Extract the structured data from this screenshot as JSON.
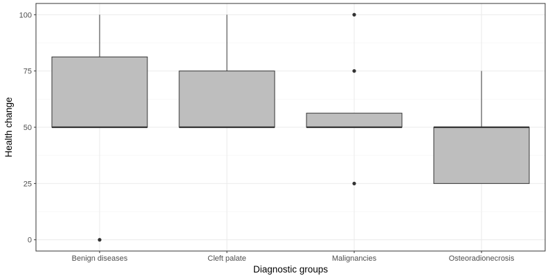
{
  "chart_data": {
    "type": "boxplot",
    "title": "",
    "xlabel": "Diagnostic groups",
    "ylabel": "Health change",
    "ylim": [
      -5,
      105
    ],
    "yticks": [
      0,
      25,
      50,
      75,
      100
    ],
    "grid": true,
    "categories": [
      "Benign diseases",
      "Cleft palate",
      "Malignancies",
      "Osteoradionecrosis"
    ],
    "boxes": [
      {
        "category": "Benign diseases",
        "whisker_low": 50,
        "q1": 50,
        "median": 50,
        "q3": 81.25,
        "whisker_high": 100,
        "outliers": [
          0
        ]
      },
      {
        "category": "Cleft palate",
        "whisker_low": 50,
        "q1": 50,
        "median": 50,
        "q3": 75,
        "whisker_high": 100,
        "outliers": []
      },
      {
        "category": "Malignancies",
        "whisker_low": 50,
        "q1": 50,
        "median": 50,
        "q3": 56.25,
        "whisker_high": 56.25,
        "outliers": [
          100,
          75,
          25
        ]
      },
      {
        "category": "Osteoradionecrosis",
        "whisker_low": 25,
        "q1": 25,
        "median": 50,
        "q3": 50,
        "whisker_high": 75,
        "outliers": []
      }
    ],
    "colors": {
      "box_fill": "#bebebe",
      "box_stroke": "#333333",
      "outlier": "#333333",
      "grid_major": "#ebebeb",
      "grid_minor": "#f5f5f5",
      "panel_border": "#333333"
    }
  }
}
